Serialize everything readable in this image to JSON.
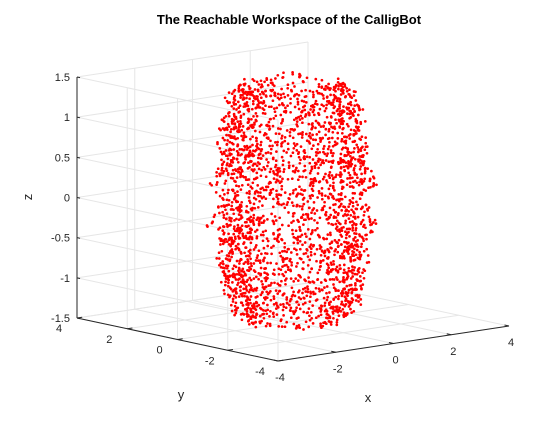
{
  "chart_data": {
    "type": "scatter",
    "title": "The Reachable Workspace of the CalligBot",
    "xlabel": "x",
    "ylabel": "y",
    "zlabel": "z",
    "xlim": [
      -4,
      4
    ],
    "ylim": [
      -4,
      4
    ],
    "zlim": [
      -1.5,
      1.5
    ],
    "xticks": [
      "-4",
      "-2",
      "0",
      "2",
      "4"
    ],
    "yticks": [
      "-4",
      "-2",
      "0",
      "2",
      "4"
    ],
    "zticks": [
      "-1.5",
      "-1",
      "-0.5",
      "0",
      "0.5",
      "1",
      "1.5"
    ],
    "grid": true,
    "view": "3d",
    "marker_color": "#ff0000",
    "series": [
      {
        "shape": "solid of revolution about the z axis",
        "profile": [
          {
            "z": -1.5,
            "r": 1.3
          },
          {
            "z": -1.3,
            "r": 1.8
          },
          {
            "z": -1.0,
            "r": 1.9
          },
          {
            "z": -0.7,
            "r": 2.0
          },
          {
            "z": -0.5,
            "r": 1.9
          },
          {
            "z": -0.3,
            "r": 2.3
          },
          {
            "z": 0.0,
            "r": 1.9
          },
          {
            "z": 0.3,
            "r": 2.3
          },
          {
            "z": 0.5,
            "r": 1.9
          },
          {
            "z": 0.7,
            "r": 2.0
          },
          {
            "z": 1.0,
            "r": 1.9
          },
          {
            "z": 1.3,
            "r": 1.8
          },
          {
            "z": 1.5,
            "r": 1.3
          }
        ]
      }
    ]
  }
}
